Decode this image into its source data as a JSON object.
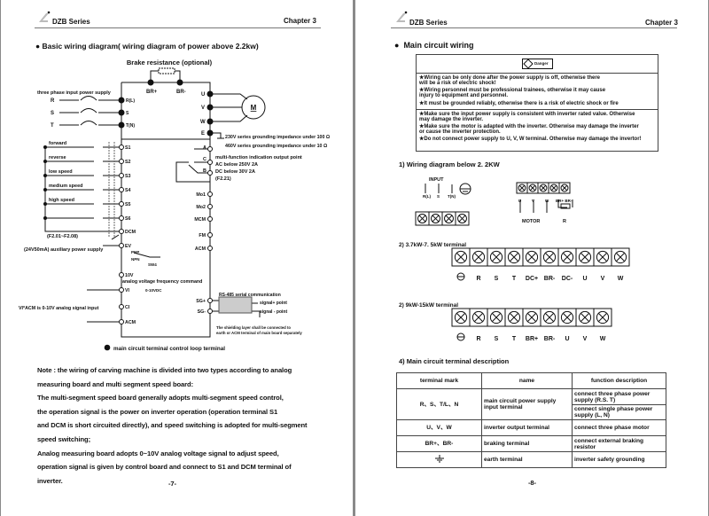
{
  "header": {
    "series": "DZB Series",
    "chapter": "Chapter 3"
  },
  "left": {
    "title": "Basic wiring diagram( wiring diagram of power above 2.2kw)",
    "diagram": {
      "brake": "Brake resistance (optional)",
      "br_plus": "BR+",
      "br_minus": "BR-",
      "input_label": "three phase input power supply",
      "inputs": [
        "R",
        "S",
        "T"
      ],
      "input_terms": [
        "R(L)",
        "S",
        "T(N)"
      ],
      "outputs": [
        "U",
        "V",
        "W",
        "E"
      ],
      "motor": "M",
      "ground1": "230V series grounding impedance under 100 Ω",
      "ground2": "460V series grounding impedance under 10 Ω",
      "switch_labels": [
        "forward",
        "reverse",
        "low speed",
        "medium speed",
        "high speed"
      ],
      "digital_terms": [
        "S1",
        "S2",
        "S3",
        "S4",
        "S5",
        "S6",
        "DCM",
        "EV"
      ],
      "f_range": "(F2.01~F2.08)",
      "aux": "(24V50mA) auxiliary power supply",
      "pnp": "PNP",
      "npn": "NPN",
      "sw4": "SW4",
      "t10v": "10V",
      "analog_cmd": "analog  voltage frequency command",
      "vi": "VI",
      "vdc": "0-10VDC",
      "ci": "CI",
      "acm": "ACM",
      "vi_acm": "VI*ACM is 0-10V analog signal input",
      "relay": [
        "A",
        "C",
        "B"
      ],
      "multi1": "multi-function indication output point",
      "multi2": "AC below 250V 2A",
      "multi3": "DC below 30V 2A",
      "multi4": "(F2.21)",
      "right_terms": [
        "Mo1",
        "Mo2",
        "MCM",
        "FM",
        "ACM"
      ],
      "sgp": "SG+",
      "sgm": "SG-",
      "rs485": "RS-485 serial communication",
      "sigp": "signal+ point",
      "sigm": "signal - point",
      "shield1": "The shielding layer shall be connected to",
      "shield2": "earth or ACM terminal of main board separately",
      "legend": "main circuit terminal  control loop terminal"
    },
    "note": [
      "Note :  the wiring of carving machine is divided into two types according to analog",
      "measuring board and multi segment speed board:",
      "The multi-segment speed board generally adopts multi-segment speed control,",
      "the operation signal is the power on inverter operation (operation terminal S1",
      "and DCM is short circuited directly), and speed switching is adopted for multi-segment",
      "speed switching;",
      "Analog  measuring  board  adopts  0~10V  analog  voltage signal to adjust speed,",
      "operation signal is given by control board and connect to S1 and DCM terminal of",
      "inverter."
    ],
    "page_no": "-7-"
  },
  "right": {
    "title": "Main circuit wiring",
    "danger_label": "Danger",
    "danger_lines": [
      "★Wiring can be only done after the power supply is off, otherwise there",
      "   will be a risk of electric shock!",
      "★Wiring personnel must be professional trainees, otherwise it may cause",
      "   injury to equipment and personnel.",
      "★It must be grounded reliably, otherwise there is a risk of electric shock or fire"
    ],
    "caution_lines": [
      "★Make  sure the input power supply is consistent with inverter rated value. Otherwise",
      "    may damage the inverter.",
      "★Make sure the motor is adapted with the inverter. Otherwise may damage the inverter",
      "    or cause the inverter protection.",
      "★Do not connect power supply to U, V, W terminal. Otherwise may damage the invertor!"
    ],
    "s1": "1) Wiring  diagram below  2. 2KW",
    "small": {
      "input": "INPUT",
      "in_labels": [
        "R(L)",
        "S",
        "T(N)"
      ],
      "out_labels": [
        "U",
        "V",
        "W",
        "BR+ BR-"
      ],
      "motor": "MOTOR",
      "r": "R"
    },
    "s2": "2) 3.7kW-7. 5kW terminal",
    "strip1": [
      "R",
      "S",
      "T",
      "DC+",
      "BR-",
      "DC-",
      "U",
      "V",
      "W"
    ],
    "s3": "2) 9kW-15kW terminal",
    "strip2": [
      "R",
      "S",
      "T",
      "BR+",
      "BR-",
      "U",
      "V",
      "W"
    ],
    "s4": "4) Main circuit  terminal  description",
    "table": {
      "headers": [
        "terminal mark",
        "name",
        "function description"
      ],
      "rows": [
        [
          "R、S、T/L、N",
          "main circuit power supply input terminal",
          "connect three phase power supply (R.S. T)",
          "connect single phase power supply (L, N)"
        ],
        [
          "U、V、W",
          "inverter output terminal",
          "connect three phase motor"
        ],
        [
          "BR+、BR-",
          "braking terminal",
          "connect external braking resistor"
        ],
        [
          "",
          "earth terminal",
          "inverter safety grounding"
        ]
      ]
    },
    "page_no": "-8-"
  }
}
